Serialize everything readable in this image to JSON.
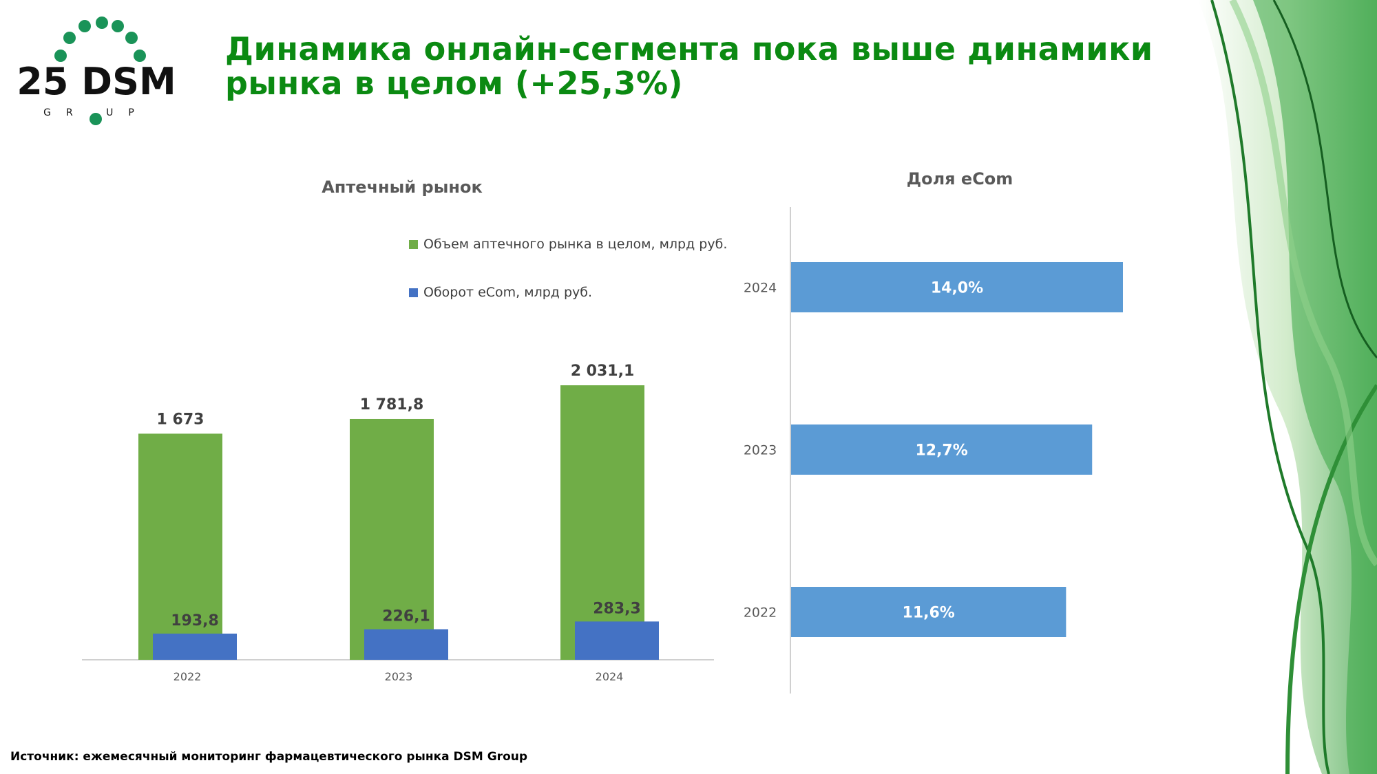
{
  "title": {
    "line1": "Динамика онлайн-сегмента пока выше динамики",
    "line2": "рынка в целом (+25,3%)"
  },
  "logo": {
    "text": "25 DSM",
    "sub": "GROUP"
  },
  "chart_data": [
    {
      "type": "bar",
      "title": "Аптечный рынок",
      "categories": [
        "2022",
        "2023",
        "2024"
      ],
      "series": [
        {
          "name": "Объем аптечного рынка в целом, млрд руб.",
          "color": "#70ad47",
          "values": [
            1673,
            1781.8,
            2031.1
          ],
          "labels": [
            "1 673",
            "1 781,8",
            "2 031,1"
          ]
        },
        {
          "name": "Оборот eCom, млрд руб.",
          "color": "#4472c4",
          "values": [
            193.8,
            226.1,
            283.3
          ],
          "labels": [
            "193,8",
            "226,1",
            "283,3"
          ]
        }
      ],
      "legend": "top-right",
      "ylim": [
        0,
        2031.1
      ]
    },
    {
      "type": "bar",
      "orientation": "horizontal",
      "title": "Доля eCom",
      "categories": [
        "2024",
        "2023",
        "2022"
      ],
      "values": [
        14.0,
        12.7,
        11.6
      ],
      "labels": [
        "14,0%",
        "12,7%",
        "11,6%"
      ],
      "color": "#5b9bd5",
      "xlim": [
        0,
        14.0
      ]
    }
  ],
  "footer": "Источник: ежемесячный мониторинг фармацевтического рынка DSM Group"
}
